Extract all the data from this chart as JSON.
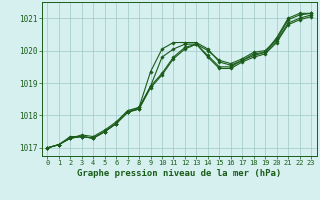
{
  "bg_color": "#d6f0f0",
  "line_color": "#1a5c1a",
  "grid_color": "#a0c8c8",
  "title": "Graphe pression niveau de la mer (hPa)",
  "ylim": [
    1016.75,
    1021.5
  ],
  "xlim": [
    -0.5,
    23.5
  ],
  "yticks": [
    1017,
    1018,
    1019,
    1020,
    1021
  ],
  "xticks": [
    0,
    1,
    2,
    3,
    4,
    5,
    6,
    7,
    8,
    9,
    10,
    11,
    12,
    13,
    14,
    15,
    16,
    17,
    18,
    19,
    20,
    21,
    22,
    23
  ],
  "lines": [
    [
      1017.0,
      1017.1,
      1017.3,
      1017.35,
      1017.3,
      1017.5,
      1017.75,
      1018.1,
      1018.2,
      1018.85,
      1019.25,
      1019.75,
      1020.05,
      1020.2,
      1019.8,
      1019.45,
      1019.45,
      1019.65,
      1019.8,
      1019.9,
      1020.25,
      1020.8,
      1020.95,
      1021.05
    ],
    [
      1017.0,
      1017.1,
      1017.3,
      1017.35,
      1017.3,
      1017.5,
      1017.75,
      1018.1,
      1018.2,
      1018.9,
      1019.3,
      1019.8,
      1020.1,
      1020.2,
      1019.85,
      1019.5,
      1019.5,
      1019.7,
      1019.85,
      1019.95,
      1020.3,
      1020.85,
      1021.0,
      1021.1
    ],
    [
      1017.0,
      1017.1,
      1017.3,
      1017.4,
      1017.35,
      1017.55,
      1017.8,
      1018.15,
      1018.25,
      1018.9,
      1019.8,
      1020.05,
      1020.2,
      1020.2,
      1020.0,
      1019.7,
      1019.6,
      1019.75,
      1019.95,
      1020.0,
      1020.35,
      1020.95,
      1021.1,
      1021.15
    ],
    [
      1017.0,
      1017.1,
      1017.35,
      1017.35,
      1017.3,
      1017.5,
      1017.75,
      1018.1,
      1018.25,
      1019.35,
      1020.05,
      1020.25,
      1020.25,
      1020.25,
      1020.05,
      1019.65,
      1019.55,
      1019.7,
      1019.9,
      1019.95,
      1020.4,
      1021.0,
      1021.15,
      1021.15
    ]
  ]
}
